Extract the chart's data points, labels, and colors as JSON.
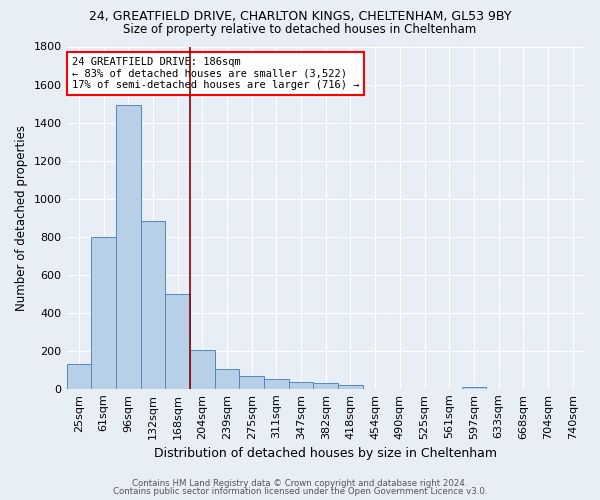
{
  "title": "24, GREATFIELD DRIVE, CHARLTON KINGS, CHELTENHAM, GL53 9BY",
  "subtitle": "Size of property relative to detached houses in Cheltenham",
  "xlabel": "Distribution of detached houses by size in Cheltenham",
  "ylabel": "Number of detached properties",
  "categories": [
    "25sqm",
    "61sqm",
    "96sqm",
    "132sqm",
    "168sqm",
    "204sqm",
    "239sqm",
    "275sqm",
    "311sqm",
    "347sqm",
    "382sqm",
    "418sqm",
    "454sqm",
    "490sqm",
    "525sqm",
    "561sqm",
    "597sqm",
    "633sqm",
    "668sqm",
    "704sqm",
    "740sqm"
  ],
  "values": [
    130,
    800,
    1490,
    880,
    500,
    205,
    105,
    65,
    50,
    35,
    28,
    20,
    0,
    0,
    0,
    0,
    12,
    0,
    0,
    0,
    0
  ],
  "bar_color": "#b8cfe8",
  "bar_edge_color": "#5588bb",
  "background_color": "#e8eef6",
  "grid_color": "#ffffff",
  "vline_x_index": 4.5,
  "vline_color": "#8b0000",
  "ylim": [
    0,
    1800
  ],
  "yticks": [
    0,
    200,
    400,
    600,
    800,
    1000,
    1200,
    1400,
    1600,
    1800
  ],
  "annotation_line1": "24 GREATFIELD DRIVE: 186sqm",
  "annotation_line2": "← 83% of detached houses are smaller (3,522)",
  "annotation_line3": "17% of semi-detached houses are larger (716) →",
  "footer1": "Contains HM Land Registry data © Crown copyright and database right 2024.",
  "footer2": "Contains public sector information licensed under the Open Government Licence v3.0."
}
